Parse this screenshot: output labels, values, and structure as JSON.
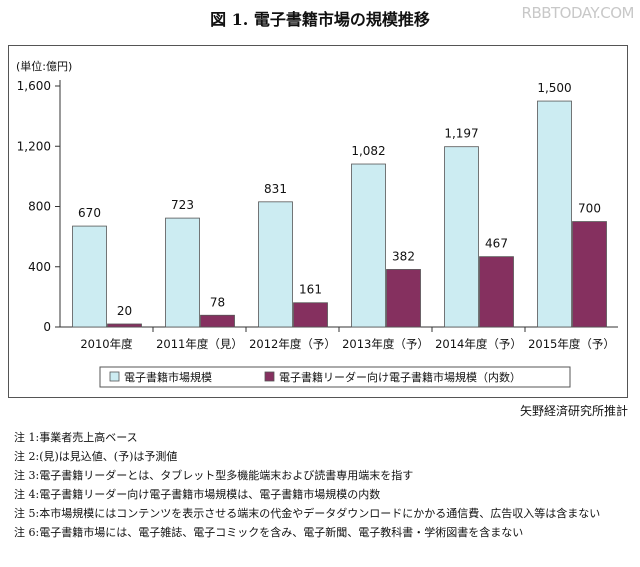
{
  "header": {
    "title": "図 1. 電子書籍市場の規模推移",
    "watermark": "RBBTODAY.COM"
  },
  "chart_data": {
    "type": "bar",
    "unit_label": "(単位:億円)",
    "categories": [
      "2010年度",
      "2011年度（見）",
      "2012年度（予）",
      "2013年度（予）",
      "2014年度（予）",
      "2015年度（予）"
    ],
    "series": [
      {
        "name": "電子書籍市場規模",
        "values": [
          670,
          723,
          831,
          1082,
          1197,
          1500
        ],
        "labels": [
          "670",
          "723",
          "831",
          "1,082",
          "1,197",
          "1,500"
        ],
        "color": "#ccecf2"
      },
      {
        "name": "電子書籍リーダー向け電子書籍市場規模（内数）",
        "values": [
          20,
          78,
          161,
          382,
          467,
          700
        ],
        "labels": [
          "20",
          "78",
          "161",
          "382",
          "467",
          "700"
        ],
        "color": "#85305f"
      }
    ],
    "y_ticks": [
      0,
      400,
      800,
      1200,
      1600
    ],
    "y_tick_labels": [
      "0",
      "400",
      "800",
      "1,200",
      "1,600"
    ],
    "ylim": [
      0,
      1600
    ],
    "grid": false,
    "legend_position": "bottom"
  },
  "source": "矢野経済研究所推計",
  "notes": [
    {
      "label": "注 1:",
      "text": "事業者売上高ベース"
    },
    {
      "label": "注 2:",
      "text": "(見)は見込値、(予)は予測値"
    },
    {
      "label": "注 3:",
      "text": "電子書籍リーダーとは、タブレット型多機能端末および読書専用端末を指す"
    },
    {
      "label": "注 4:",
      "text": "電子書籍リーダー向け電子書籍市場規模は、電子書籍市場規模の内数"
    },
    {
      "label": "注 5:",
      "text": "本市場規模にはコンテンツを表示させる端末の代金やデータダウンロードにかかる通信費、広告収入等は含まない"
    },
    {
      "label": "注 6:",
      "text": "電子書籍市場には、電子雑誌、電子コミックを含み、電子新聞、電子教科書・学術図書を含まない"
    }
  ]
}
